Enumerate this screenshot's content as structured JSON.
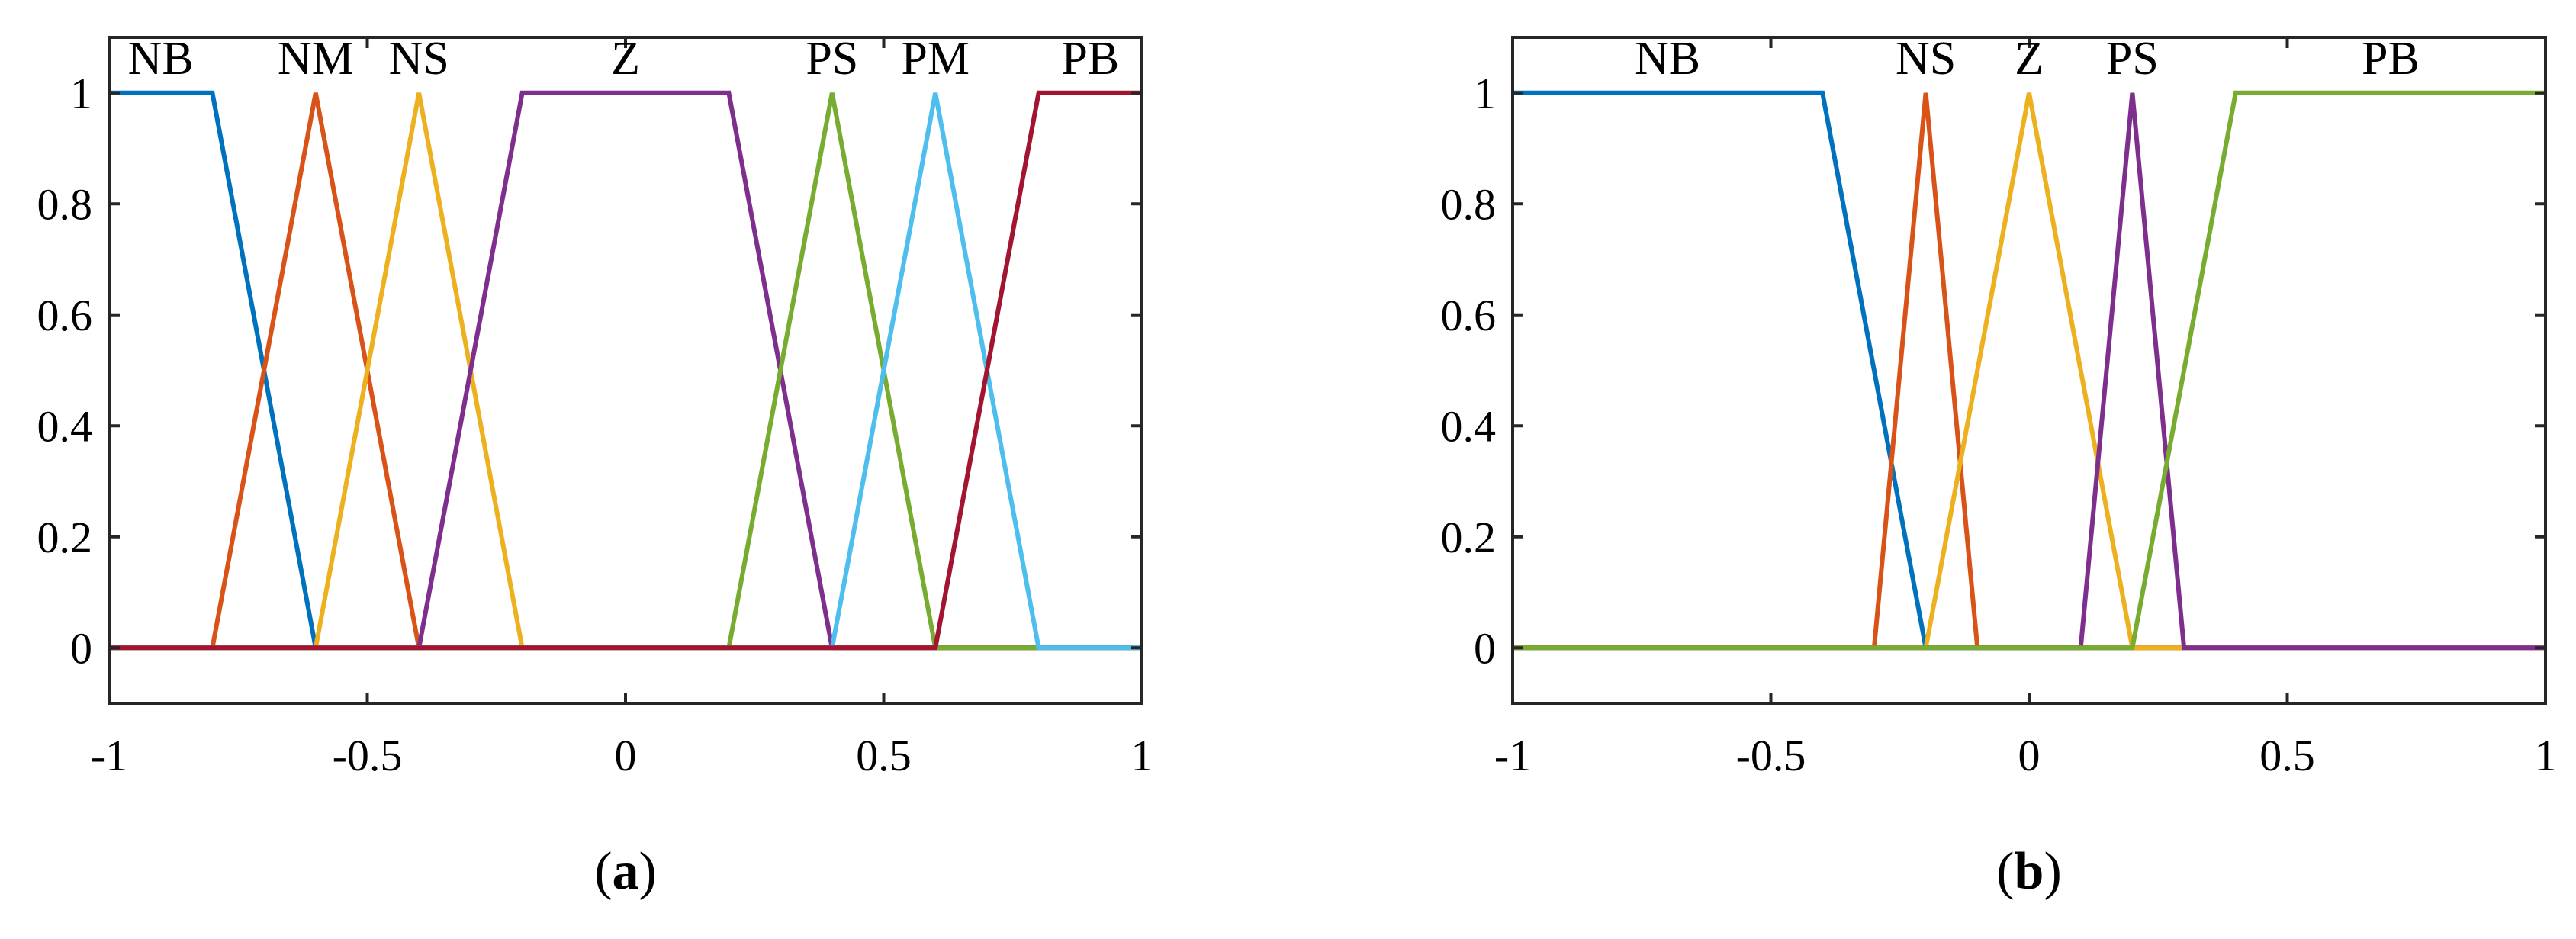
{
  "chart_data": [
    {
      "type": "line",
      "panel_label": "a",
      "title": "",
      "xlabel": "",
      "ylabel": "",
      "xlim": [
        -1,
        1
      ],
      "ylim": [
        -0.1,
        1.1
      ],
      "xticks": [
        -1,
        -0.5,
        0,
        0.5,
        1
      ],
      "xtick_labels": [
        "-1",
        "-0.5",
        "0",
        "0.5",
        "1"
      ],
      "yticks": [
        0,
        0.2,
        0.4,
        0.6,
        0.8,
        1
      ],
      "ytick_labels": [
        "0",
        "0.2",
        "0.4",
        "0.6",
        "0.8",
        "1"
      ],
      "grid": false,
      "series": [
        {
          "name": "NB",
          "color": "#0072BD",
          "label_x": -0.9,
          "x": [
            -1,
            -0.8,
            -0.6,
            1
          ],
          "y": [
            1,
            1,
            0,
            0
          ]
        },
        {
          "name": "NM",
          "color": "#D95319",
          "label_x": -0.6,
          "x": [
            -1,
            -0.8,
            -0.6,
            -0.4,
            1
          ],
          "y": [
            0,
            0,
            1,
            0,
            0
          ]
        },
        {
          "name": "NS",
          "color": "#EDB120",
          "label_x": -0.4,
          "x": [
            -1,
            -0.6,
            -0.4,
            -0.2,
            1
          ],
          "y": [
            0,
            0,
            1,
            0,
            0
          ]
        },
        {
          "name": "Z",
          "color": "#7E2F8E",
          "label_x": 0,
          "x": [
            -1,
            -0.4,
            -0.2,
            0.2,
            0.4,
            1
          ],
          "y": [
            0,
            0,
            1,
            1,
            0,
            0
          ]
        },
        {
          "name": "PS",
          "color": "#77AC30",
          "label_x": 0.4,
          "x": [
            -1,
            0.2,
            0.4,
            0.6,
            1
          ],
          "y": [
            0,
            0,
            1,
            0,
            0
          ]
        },
        {
          "name": "PM",
          "color": "#4DBEEE",
          "label_x": 0.6,
          "x": [
            -1,
            0.4,
            0.6,
            0.8,
            1
          ],
          "y": [
            0,
            0,
            1,
            0,
            0
          ]
        },
        {
          "name": "PB",
          "color": "#A2142F",
          "label_x": 0.9,
          "x": [
            -1,
            0.6,
            0.8,
            1
          ],
          "y": [
            0,
            0,
            1,
            1
          ]
        }
      ]
    },
    {
      "type": "line",
      "panel_label": "b",
      "title": "",
      "xlabel": "",
      "ylabel": "",
      "xlim": [
        -1,
        1
      ],
      "ylim": [
        -0.1,
        1.1
      ],
      "xticks": [
        -1,
        -0.5,
        0,
        0.5,
        1
      ],
      "xtick_labels": [
        "-1",
        "-0.5",
        "0",
        "0.5",
        "1"
      ],
      "yticks": [
        0,
        0.2,
        0.4,
        0.6,
        0.8,
        1
      ],
      "ytick_labels": [
        "0",
        "0.2",
        "0.4",
        "0.6",
        "0.8",
        "1"
      ],
      "grid": false,
      "series": [
        {
          "name": "NB",
          "color": "#0072BD",
          "label_x": -0.7,
          "x": [
            -1,
            -0.4,
            -0.2,
            1
          ],
          "y": [
            1,
            1,
            0,
            0
          ]
        },
        {
          "name": "NS",
          "color": "#D95319",
          "label_x": -0.2,
          "x": [
            -1,
            -0.3,
            -0.2,
            -0.1,
            1
          ],
          "y": [
            0,
            0,
            1,
            0,
            0
          ]
        },
        {
          "name": "Z",
          "color": "#EDB120",
          "label_x": 0,
          "x": [
            -1,
            -0.2,
            0,
            0.2,
            1
          ],
          "y": [
            0,
            0,
            1,
            0,
            0
          ]
        },
        {
          "name": "PS",
          "color": "#7E2F8E",
          "label_x": 0.2,
          "x": [
            -1,
            0.1,
            0.2,
            0.3,
            1
          ],
          "y": [
            0,
            0,
            1,
            0,
            0
          ]
        },
        {
          "name": "PB",
          "color": "#77AC30",
          "label_x": 0.7,
          "x": [
            -1,
            0.2,
            0.4,
            1
          ],
          "y": [
            0,
            0,
            1,
            1
          ]
        }
      ]
    }
  ]
}
